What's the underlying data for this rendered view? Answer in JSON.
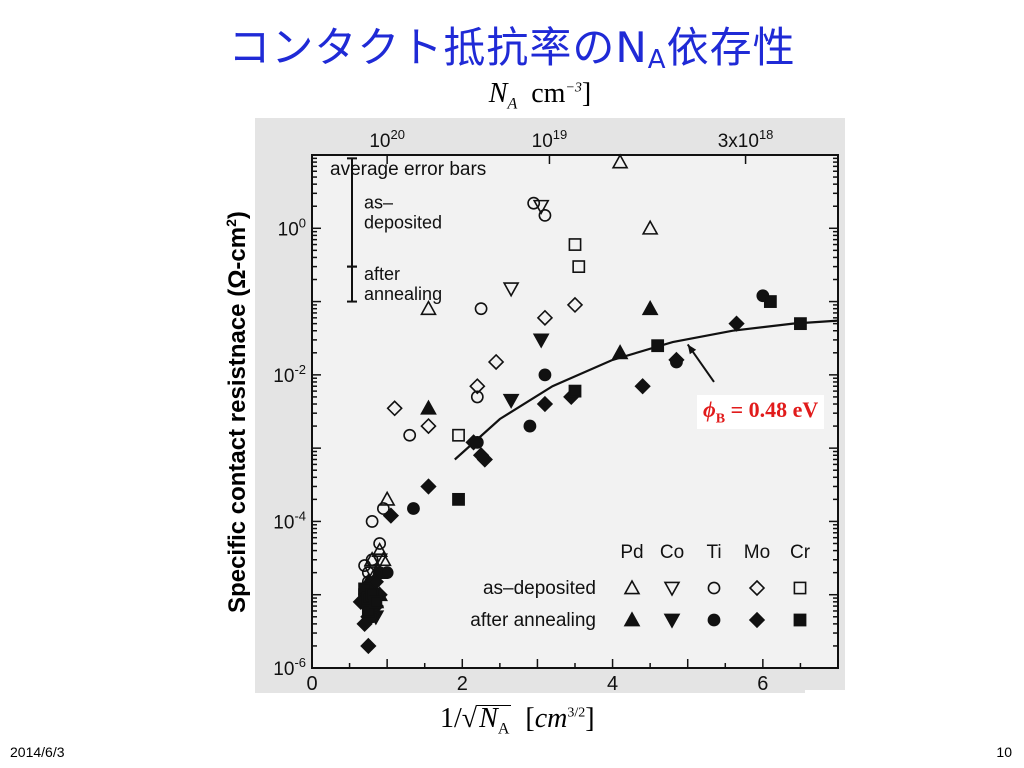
{
  "slide": {
    "title": "コンタクト抵抗率のN",
    "title_sub": "A",
    "title_after": "依存性",
    "date": "2014/6/3",
    "page_number": "10"
  },
  "axes": {
    "top_label_symbol": "N",
    "top_label_sub": "A",
    "top_label_unit": "[cm",
    "top_label_exp": "−3",
    "top_label_close": "]",
    "bottom_label_prefix": "1/",
    "bottom_label_symbol": "N",
    "bottom_label_sub": "A",
    "bottom_label_unit": "[cm",
    "bottom_label_exp": "3/2",
    "bottom_label_close": "]",
    "y_label": "Specific contact resistnace (Ω-cm",
    "y_label_exp": "2",
    "y_label_close": ")"
  },
  "annotation": {
    "symbol": "ϕ",
    "sub": "B",
    "text": " = 0.48 eV"
  },
  "chart_data": {
    "type": "scatter",
    "x_scale": "linear",
    "y_scale": "log",
    "xlim": [
      0,
      7
    ],
    "ylim": [
      1e-06,
      10
    ],
    "x_ticks": [
      {
        "value": 0,
        "label": "0"
      },
      {
        "value": 2,
        "label": "2"
      },
      {
        "value": 4,
        "label": "4"
      },
      {
        "value": 6,
        "label": "6"
      }
    ],
    "y_ticks": [
      {
        "value": 1e-06,
        "base": "10",
        "exp": "-6"
      },
      {
        "value": 0.0001,
        "base": "10",
        "exp": "-4"
      },
      {
        "value": 0.01,
        "base": "10",
        "exp": "-2"
      },
      {
        "value": 1,
        "base": "10",
        "exp": "0"
      }
    ],
    "top_ticks": [
      {
        "x": 1.0,
        "base": "10",
        "exp": "20"
      },
      {
        "x": 3.16,
        "base": "10",
        "exp": "19"
      },
      {
        "x": 5.77,
        "base": "3x10",
        "exp": "18"
      }
    ],
    "error_bars": {
      "title": "average error bars",
      "items": [
        {
          "label1": "as–",
          "label2": "deposited",
          "x": 0.55,
          "ylow": 0.3,
          "yhigh": 10
        },
        {
          "label1": "after",
          "label2": "annealing",
          "x": 0.55,
          "ylow": 0.1,
          "yhigh": 0.3
        }
      ]
    },
    "legend": {
      "position": "bottom-right",
      "headers": [
        "Pd",
        "Co",
        "Ti",
        "Mo",
        "Cr"
      ],
      "rows": [
        {
          "label": "as–deposited",
          "filled": false
        },
        {
          "label": "after annealing",
          "filled": true
        }
      ]
    },
    "series": [
      {
        "name": "Pd",
        "marker": "triangle-up",
        "filled": false,
        "points": [
          [
            0.8,
            3e-05
          ],
          [
            0.85,
            2e-05
          ],
          [
            0.9,
            2e-05
          ],
          [
            0.95,
            3e-05
          ],
          [
            0.9,
            4e-05
          ],
          [
            1.0,
            0.0002
          ],
          [
            1.55,
            0.08
          ],
          [
            4.1,
            8
          ],
          [
            4.5,
            1.0
          ]
        ]
      },
      {
        "name": "Co",
        "marker": "triangle-down",
        "filled": false,
        "points": [
          [
            0.8,
            2e-05
          ],
          [
            0.9,
            3e-05
          ],
          [
            3.05,
            2.0
          ],
          [
            2.65,
            0.15
          ]
        ]
      },
      {
        "name": "Ti",
        "marker": "circle",
        "filled": false,
        "points": [
          [
            0.7,
            2.5e-05
          ],
          [
            0.75,
            2e-05
          ],
          [
            0.8,
            3e-05
          ],
          [
            0.75,
            1.5e-05
          ],
          [
            0.8,
            0.0001
          ],
          [
            0.9,
            5e-05
          ],
          [
            0.95,
            0.00015
          ],
          [
            1.3,
            0.0015
          ],
          [
            2.2,
            0.005
          ],
          [
            2.25,
            0.08
          ],
          [
            2.95,
            2.2
          ],
          [
            3.1,
            1.5
          ]
        ]
      },
      {
        "name": "Mo",
        "marker": "diamond",
        "filled": false,
        "points": [
          [
            1.1,
            0.0035
          ],
          [
            1.55,
            0.002
          ],
          [
            2.2,
            0.007
          ],
          [
            2.45,
            0.015
          ],
          [
            3.1,
            0.06
          ],
          [
            3.5,
            0.09
          ]
        ]
      },
      {
        "name": "Cr",
        "marker": "square",
        "filled": false,
        "points": [
          [
            0.7,
            1e-05
          ],
          [
            0.75,
            8e-06
          ],
          [
            1.95,
            0.0015
          ],
          [
            3.5,
            0.6
          ],
          [
            3.55,
            0.3
          ]
        ]
      },
      {
        "name": "Pd",
        "marker": "triangle-up",
        "filled": true,
        "points": [
          [
            0.75,
            1.5e-05
          ],
          [
            0.8,
            1e-05
          ],
          [
            0.85,
            8e-06
          ],
          [
            0.9,
            1e-05
          ],
          [
            1.55,
            0.0035
          ],
          [
            4.1,
            0.02
          ],
          [
            4.5,
            0.08
          ]
        ]
      },
      {
        "name": "Co",
        "marker": "triangle-down",
        "filled": true,
        "points": [
          [
            0.75,
            8e-06
          ],
          [
            0.8,
            6e-06
          ],
          [
            0.85,
            5e-06
          ],
          [
            2.65,
            0.0045
          ],
          [
            3.05,
            0.03
          ]
        ]
      },
      {
        "name": "Ti",
        "marker": "circle",
        "filled": true,
        "points": [
          [
            0.7,
            1e-05
          ],
          [
            0.75,
            7e-06
          ],
          [
            0.8,
            1.2e-05
          ],
          [
            0.85,
            9e-06
          ],
          [
            0.9,
            2e-05
          ],
          [
            0.8,
            5e-06
          ],
          [
            1.0,
            2e-05
          ],
          [
            1.35,
            0.00015
          ],
          [
            2.2,
            0.0012
          ],
          [
            2.9,
            0.002
          ],
          [
            3.1,
            0.01
          ],
          [
            4.85,
            0.015
          ],
          [
            6.0,
            0.12
          ]
        ]
      },
      {
        "name": "Mo",
        "marker": "diamond",
        "filled": true,
        "points": [
          [
            0.65,
            8e-06
          ],
          [
            0.7,
            4e-06
          ],
          [
            0.75,
            5e-06
          ],
          [
            0.8,
            6e-06
          ],
          [
            0.85,
            7e-06
          ],
          [
            0.9,
            1e-05
          ],
          [
            0.75,
            2e-06
          ],
          [
            0.85,
            1.5e-05
          ],
          [
            1.05,
            0.00012
          ],
          [
            1.55,
            0.0003
          ],
          [
            2.15,
            0.0012
          ],
          [
            2.25,
            0.0008
          ],
          [
            2.3,
            0.0007
          ],
          [
            3.1,
            0.004
          ],
          [
            3.45,
            0.005
          ],
          [
            4.4,
            0.007
          ],
          [
            4.85,
            0.016
          ],
          [
            5.65,
            0.05
          ]
        ]
      },
      {
        "name": "Cr",
        "marker": "square",
        "filled": true,
        "points": [
          [
            0.7,
            1.2e-05
          ],
          [
            0.75,
            9e-06
          ],
          [
            0.8,
            1e-05
          ],
          [
            0.75,
            6e-06
          ],
          [
            0.85,
            8e-06
          ],
          [
            1.95,
            0.0002
          ],
          [
            3.5,
            0.006
          ],
          [
            4.6,
            0.025
          ],
          [
            6.1,
            0.1
          ],
          [
            6.5,
            0.05
          ]
        ]
      }
    ],
    "fit_curve": {
      "points": [
        [
          1.9,
          0.0007
        ],
        [
          2.5,
          0.0025
        ],
        [
          3.2,
          0.007
        ],
        [
          4.0,
          0.016
        ],
        [
          4.8,
          0.028
        ],
        [
          5.6,
          0.04
        ],
        [
          6.4,
          0.05
        ],
        [
          7.0,
          0.055
        ]
      ],
      "arrow_from": [
        5.35,
        0.008
      ],
      "arrow_to": [
        5.0,
        0.026
      ]
    }
  }
}
